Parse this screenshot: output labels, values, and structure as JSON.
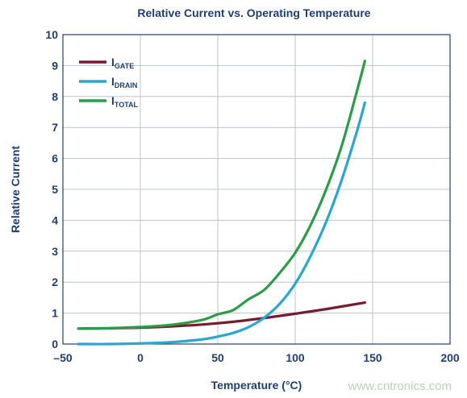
{
  "chart_data": {
    "type": "line",
    "title": "Relative Current vs. Operating Temperature",
    "xlabel": "Temperature (°C)",
    "ylabel": "Relative Current",
    "xlim": [
      -50,
      200
    ],
    "ylim": [
      0,
      10
    ],
    "x_ticks": [
      -50,
      0,
      50,
      100,
      150,
      200
    ],
    "x_tick_labels": [
      "–50",
      "0",
      "50",
      "100",
      "150",
      "200"
    ],
    "y_ticks": [
      0,
      1,
      2,
      3,
      4,
      5,
      6,
      7,
      8,
      9,
      10
    ],
    "y_tick_labels": [
      "0",
      "1",
      "2",
      "3",
      "4",
      "5",
      "6",
      "7",
      "8",
      "9",
      "10"
    ],
    "grid": true,
    "legend_position": "top-left",
    "series": [
      {
        "name_main": "I",
        "name_sub": "GATE",
        "color": "#7a1a2e",
        "x": [
          -40,
          -20,
          0,
          20,
          40,
          60,
          80,
          100,
          120,
          145
        ],
        "y": [
          0.5,
          0.51,
          0.53,
          0.57,
          0.63,
          0.72,
          0.84,
          0.98,
          1.13,
          1.34
        ]
      },
      {
        "name_main": "I",
        "name_sub": "DRAIN",
        "color": "#2aa6cf",
        "x": [
          -40,
          -20,
          0,
          20,
          40,
          50,
          60,
          70,
          80,
          90,
          100,
          110,
          120,
          130,
          140,
          145
        ],
        "y": [
          0.0,
          0.0,
          0.02,
          0.06,
          0.15,
          0.24,
          0.36,
          0.55,
          0.85,
          1.3,
          1.95,
          2.85,
          3.95,
          5.3,
          6.9,
          7.8
        ]
      },
      {
        "name_main": "I",
        "name_sub": "TOTAL",
        "color": "#2c9c48",
        "x": [
          -40,
          -20,
          0,
          20,
          40,
          50,
          60,
          70,
          80,
          90,
          100,
          110,
          120,
          130,
          140,
          145
        ],
        "y": [
          0.5,
          0.51,
          0.55,
          0.62,
          0.78,
          0.96,
          1.1,
          1.45,
          1.75,
          2.3,
          2.95,
          3.85,
          5.0,
          6.4,
          8.2,
          9.15
        ]
      }
    ]
  },
  "watermark": "www.cntronics.com"
}
